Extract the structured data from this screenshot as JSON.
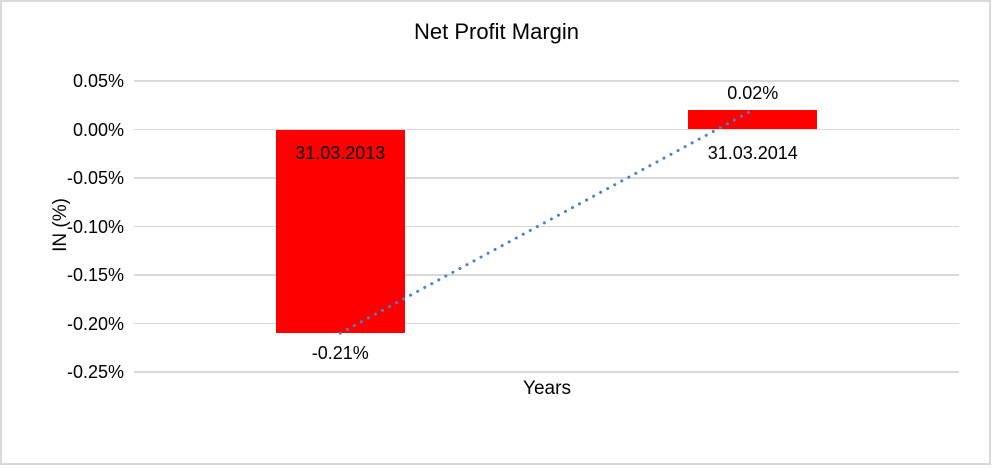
{
  "chart_data": {
    "type": "bar",
    "title": "Net Profit Margin",
    "xlabel": "Years",
    "ylabel": "IN (%)",
    "categories": [
      "31.03.2013",
      "31.03.2014"
    ],
    "values": [
      -0.21,
      0.02
    ],
    "value_labels": [
      "-0.21%",
      "0.02%"
    ],
    "yticks": [
      0.05,
      0.0,
      -0.05,
      -0.1,
      -0.15,
      -0.2,
      -0.25
    ],
    "ytick_labels": [
      "0.05%",
      "0.00%",
      "-0.05%",
      "-0.10%",
      "-0.15%",
      "-0.20%",
      "-0.25%"
    ],
    "ylim": [
      -0.25,
      0.05
    ],
    "bar_color": "#ff0000",
    "grid": true,
    "gridline_color": "#d9d9d9",
    "legend": false,
    "trendline": {
      "type": "linear",
      "style": "dotted",
      "color": "#4a82c4"
    }
  }
}
